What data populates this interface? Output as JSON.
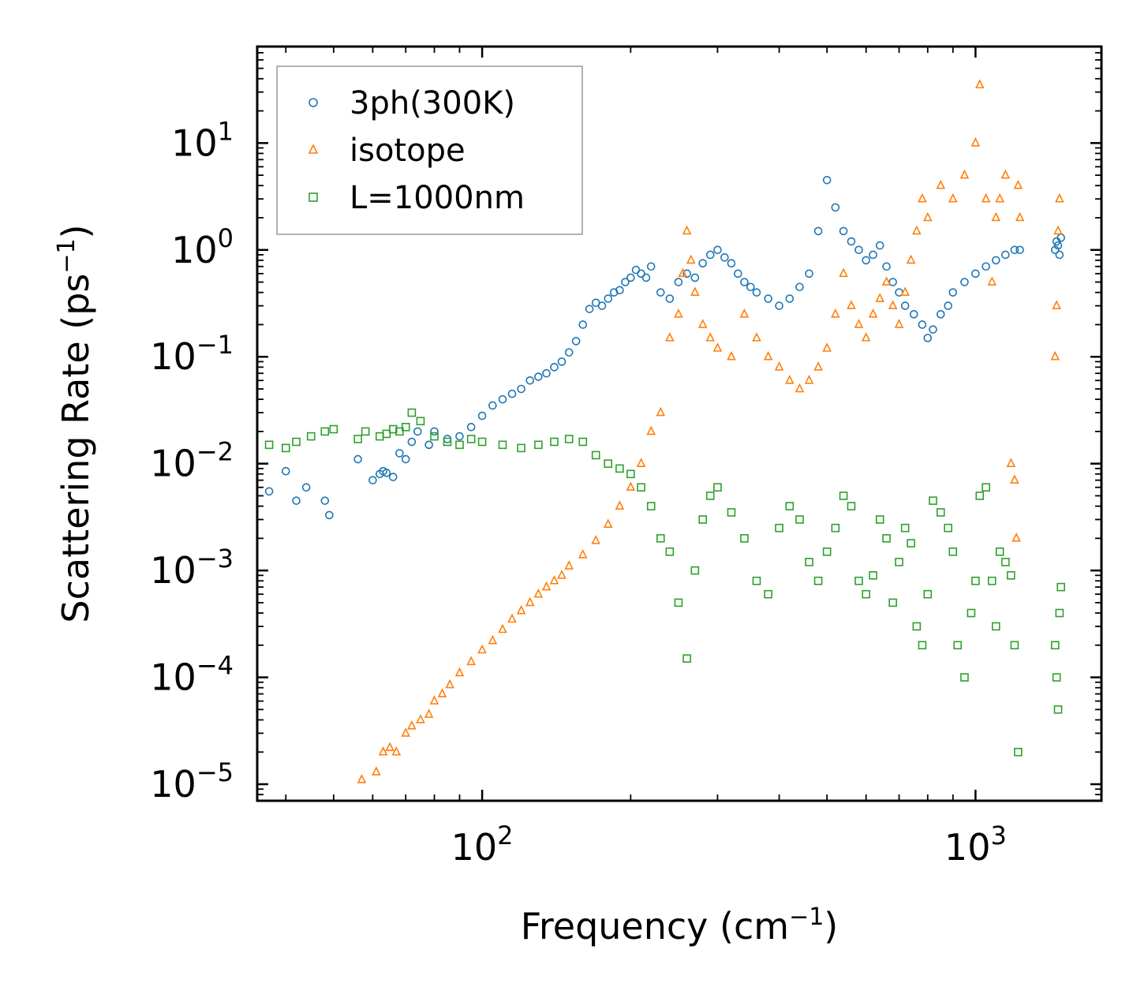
{
  "chart_data": {
    "type": "scatter",
    "xscale": "log",
    "yscale": "log",
    "xlim": [
      35,
      1800
    ],
    "ylim": [
      7e-06,
      80
    ],
    "xlabel": {
      "base": "Frequency (cm",
      "exp": "−1",
      "close": ")"
    },
    "ylabel": {
      "base": "Scattering Rate (ps",
      "exp": "−1",
      "close": ")"
    },
    "x_ticks": [
      {
        "value": 100,
        "base": "10",
        "exp": "2"
      },
      {
        "value": 1000,
        "base": "10",
        "exp": "3"
      }
    ],
    "y_ticks": [
      {
        "value": 10,
        "base": "10",
        "exp": "1"
      },
      {
        "value": 1,
        "base": "10",
        "exp": "0"
      },
      {
        "value": 0.1,
        "base": "10",
        "exp": "−1"
      },
      {
        "value": 0.01,
        "base": "10",
        "exp": "−2"
      },
      {
        "value": 0.001,
        "base": "10",
        "exp": "−3"
      },
      {
        "value": 0.0001,
        "base": "10",
        "exp": "−4"
      },
      {
        "value": 1e-05,
        "base": "10",
        "exp": "−5"
      }
    ],
    "legend_position": "top-left",
    "series": [
      {
        "name": "3ph(300K)",
        "marker": "circle",
        "color": "#1f77b4",
        "x": [
          37,
          40,
          42,
          44,
          48,
          49,
          56,
          60,
          62,
          63,
          64,
          66,
          68,
          70,
          72,
          74,
          78,
          80,
          85,
          90,
          95,
          100,
          105,
          110,
          115,
          120,
          125,
          130,
          135,
          140,
          145,
          150,
          155,
          160,
          165,
          170,
          175,
          180,
          185,
          190,
          195,
          200,
          205,
          210,
          215,
          220,
          230,
          240,
          250,
          260,
          270,
          280,
          290,
          300,
          310,
          320,
          330,
          340,
          350,
          360,
          380,
          400,
          420,
          440,
          460,
          480,
          500,
          520,
          540,
          560,
          580,
          600,
          620,
          640,
          660,
          680,
          700,
          720,
          750,
          780,
          800,
          820,
          850,
          880,
          900,
          950,
          1000,
          1050,
          1100,
          1150,
          1200,
          1230,
          1450,
          1460,
          1470,
          1480,
          1490
        ],
        "y": [
          0.0055,
          0.0085,
          0.0045,
          0.006,
          0.0045,
          0.0033,
          0.011,
          0.007,
          0.008,
          0.0085,
          0.0082,
          0.0075,
          0.0125,
          0.011,
          0.016,
          0.02,
          0.015,
          0.02,
          0.017,
          0.018,
          0.022,
          0.028,
          0.035,
          0.04,
          0.045,
          0.05,
          0.06,
          0.065,
          0.07,
          0.08,
          0.09,
          0.11,
          0.14,
          0.2,
          0.28,
          0.32,
          0.3,
          0.35,
          0.4,
          0.42,
          0.5,
          0.55,
          0.65,
          0.6,
          0.55,
          0.7,
          0.4,
          0.35,
          0.5,
          0.6,
          0.55,
          0.75,
          0.9,
          1.0,
          0.85,
          0.75,
          0.6,
          0.5,
          0.45,
          0.4,
          0.35,
          0.3,
          0.35,
          0.45,
          0.6,
          1.5,
          4.5,
          2.5,
          1.5,
          1.2,
          1.0,
          0.8,
          0.9,
          1.1,
          0.7,
          0.5,
          0.4,
          0.3,
          0.25,
          0.2,
          0.15,
          0.18,
          0.25,
          0.3,
          0.4,
          0.5,
          0.6,
          0.7,
          0.8,
          0.9,
          1.0,
          1.0,
          1.0,
          1.2,
          1.1,
          0.9,
          1.3
        ]
      },
      {
        "name": "isotope",
        "marker": "triangle",
        "color": "#ff7f0e",
        "x": [
          57,
          61,
          63,
          65,
          67,
          70,
          72,
          75,
          78,
          80,
          83,
          86,
          90,
          95,
          100,
          105,
          110,
          115,
          120,
          125,
          130,
          135,
          140,
          145,
          150,
          160,
          170,
          180,
          190,
          200,
          210,
          220,
          230,
          240,
          250,
          255,
          260,
          265,
          270,
          280,
          290,
          300,
          320,
          340,
          360,
          380,
          400,
          420,
          440,
          460,
          480,
          500,
          520,
          540,
          560,
          580,
          600,
          620,
          640,
          660,
          680,
          700,
          720,
          740,
          760,
          780,
          800,
          850,
          900,
          950,
          1000,
          1020,
          1050,
          1080,
          1100,
          1120,
          1150,
          1180,
          1200,
          1210,
          1220,
          1230,
          1450,
          1460,
          1470,
          1480
        ],
        "y": [
          1.1e-05,
          1.3e-05,
          2e-05,
          2.2e-05,
          2e-05,
          3e-05,
          3.5e-05,
          4e-05,
          4.5e-05,
          6e-05,
          7e-05,
          8.5e-05,
          0.00011,
          0.00014,
          0.00018,
          0.00022,
          0.00028,
          0.00035,
          0.00042,
          0.0005,
          0.0006,
          0.0007,
          0.0008,
          0.0009,
          0.0011,
          0.0014,
          0.0019,
          0.0027,
          0.004,
          0.006,
          0.01,
          0.02,
          0.03,
          0.15,
          0.25,
          0.6,
          1.5,
          0.8,
          0.4,
          0.2,
          0.15,
          0.12,
          0.1,
          0.25,
          0.15,
          0.1,
          0.08,
          0.06,
          0.05,
          0.06,
          0.08,
          0.12,
          0.25,
          0.6,
          0.3,
          0.2,
          0.15,
          0.25,
          0.35,
          0.5,
          0.3,
          0.2,
          0.4,
          0.8,
          1.5,
          3,
          2,
          4,
          3,
          5,
          10,
          35,
          3,
          0.5,
          2,
          3,
          5,
          0.01,
          0.007,
          0.002,
          4,
          2,
          0.1,
          0.3,
          1.5,
          3
        ]
      },
      {
        "name": "L=1000nm",
        "marker": "square",
        "color": "#2ca02c",
        "x": [
          37,
          40,
          42,
          45,
          48,
          50,
          56,
          58,
          62,
          64,
          66,
          68,
          70,
          72,
          75,
          80,
          85,
          90,
          95,
          100,
          110,
          120,
          130,
          140,
          150,
          160,
          170,
          180,
          190,
          200,
          210,
          220,
          230,
          240,
          250,
          260,
          270,
          280,
          290,
          300,
          320,
          340,
          360,
          380,
          400,
          420,
          440,
          460,
          480,
          500,
          520,
          540,
          560,
          580,
          600,
          620,
          640,
          660,
          680,
          700,
          720,
          740,
          760,
          780,
          800,
          820,
          850,
          880,
          900,
          920,
          950,
          980,
          1000,
          1020,
          1050,
          1080,
          1100,
          1120,
          1150,
          1180,
          1200,
          1220,
          1450,
          1460,
          1470,
          1480,
          1490
        ],
        "y": [
          0.015,
          0.014,
          0.016,
          0.018,
          0.02,
          0.021,
          0.017,
          0.02,
          0.018,
          0.019,
          0.021,
          0.02,
          0.022,
          0.03,
          0.025,
          0.018,
          0.016,
          0.015,
          0.017,
          0.016,
          0.015,
          0.014,
          0.015,
          0.016,
          0.017,
          0.016,
          0.012,
          0.01,
          0.009,
          0.008,
          0.006,
          0.004,
          0.002,
          0.0015,
          0.0005,
          0.00015,
          0.001,
          0.003,
          0.005,
          0.006,
          0.0035,
          0.002,
          0.0008,
          0.0006,
          0.0025,
          0.004,
          0.003,
          0.0012,
          0.0008,
          0.0015,
          0.0025,
          0.005,
          0.004,
          0.0008,
          0.0006,
          0.0009,
          0.003,
          0.002,
          0.0005,
          0.0012,
          0.0025,
          0.0018,
          0.0003,
          0.0002,
          0.0006,
          0.0045,
          0.0035,
          0.0025,
          0.0015,
          0.0002,
          0.0001,
          0.0004,
          0.0008,
          0.005,
          0.006,
          0.0008,
          0.0003,
          0.0015,
          0.0012,
          0.0009,
          0.0002,
          2e-05,
          0.0002,
          0.0001,
          5e-05,
          0.0004,
          0.0007
        ]
      }
    ]
  }
}
